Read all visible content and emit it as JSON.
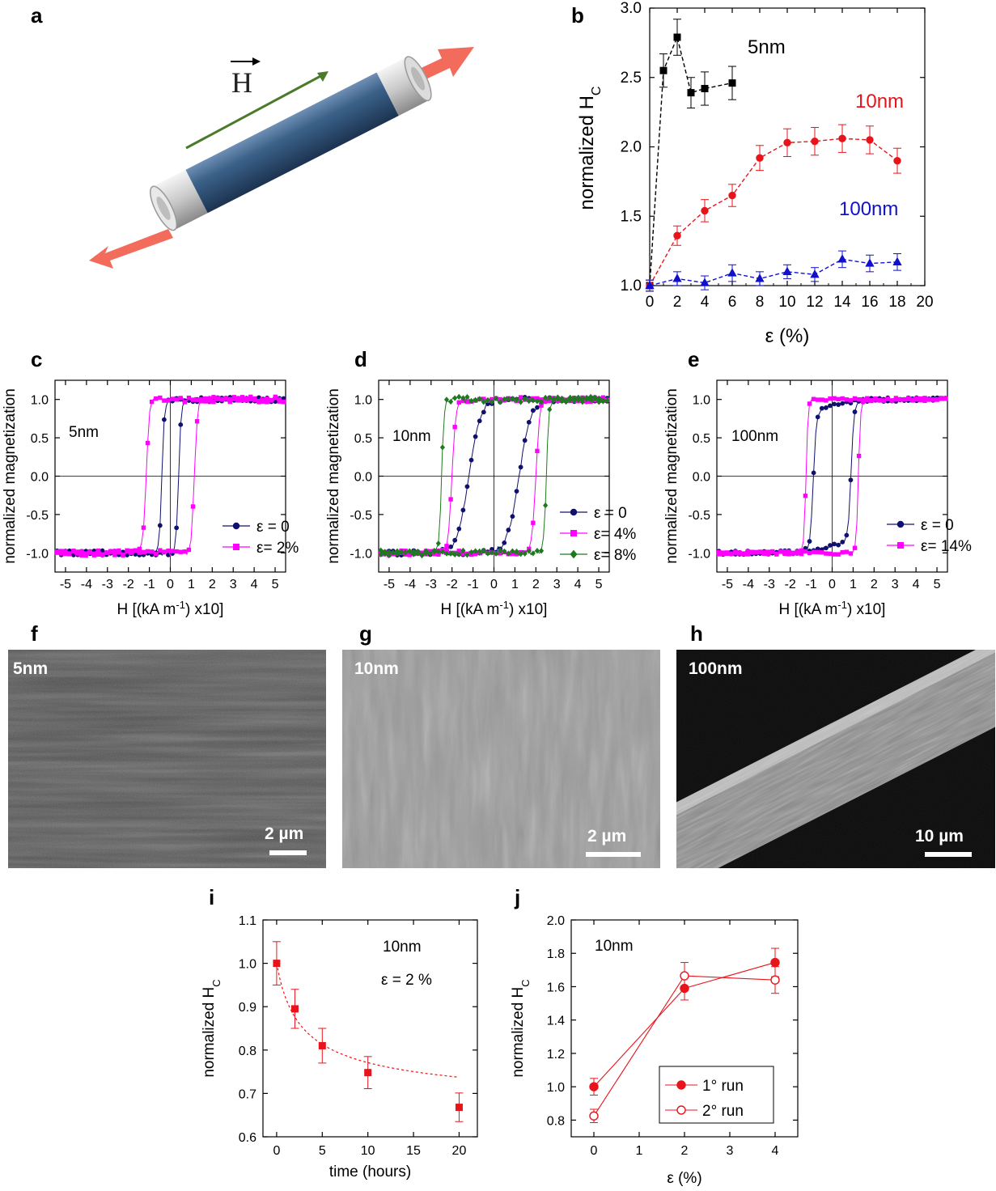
{
  "figure": {
    "panel_labels": [
      "a",
      "b",
      "c",
      "d",
      "e",
      "f",
      "g",
      "h",
      "i",
      "j"
    ],
    "field_symbol": "H",
    "sem": [
      {
        "id": "f",
        "label": "5nm",
        "scale": "2 µm"
      },
      {
        "id": "g",
        "label": "10nm",
        "scale": "2 µm"
      },
      {
        "id": "h",
        "label": "100nm",
        "scale": "10 µm"
      }
    ],
    "colors": {
      "black": "#000000",
      "red": "#e8141b",
      "blue": "#1111cc",
      "navy": "#10106e",
      "magenta": "#ff00ff",
      "green": "#1e7a1e",
      "teal": "#1f8a8a",
      "arrow": "#f26b5b",
      "field": "#4a7a2a",
      "tube": "#2f5377"
    }
  },
  "chart_data": [
    {
      "id": "b",
      "type": "scatter",
      "xlabel": "ε (%)",
      "ylabel": "normalized H",
      "ylabel_sub": "C",
      "xlim": [
        0,
        20
      ],
      "ylim": [
        1.0,
        3.0
      ],
      "xticks": [
        0,
        2,
        4,
        6,
        8,
        10,
        12,
        14,
        16,
        18,
        20
      ],
      "yticks": [
        1.0,
        1.5,
        2.0,
        2.5,
        3.0
      ],
      "series": [
        {
          "name": "5nm",
          "color": "#000000",
          "marker": "square",
          "x": [
            0,
            1,
            2,
            3,
            4,
            6
          ],
          "y": [
            1.0,
            2.55,
            2.79,
            2.39,
            2.42,
            2.46
          ],
          "err": [
            0.04,
            0.12,
            0.13,
            0.11,
            0.12,
            0.12
          ]
        },
        {
          "name": "10nm",
          "color": "#e8141b",
          "marker": "circle",
          "x": [
            0,
            2,
            4,
            6,
            8,
            10,
            12,
            14,
            16,
            18
          ],
          "y": [
            1.0,
            1.36,
            1.54,
            1.65,
            1.92,
            2.03,
            2.04,
            2.06,
            2.05,
            1.9
          ],
          "err": [
            0.04,
            0.07,
            0.08,
            0.08,
            0.09,
            0.1,
            0.1,
            0.1,
            0.1,
            0.09
          ]
        },
        {
          "name": "100nm",
          "color": "#1111cc",
          "marker": "triangle",
          "x": [
            0,
            2,
            4,
            6,
            8,
            10,
            12,
            14,
            16,
            18
          ],
          "y": [
            1.0,
            1.05,
            1.02,
            1.09,
            1.05,
            1.1,
            1.08,
            1.19,
            1.16,
            1.17
          ],
          "err": [
            0.04,
            0.05,
            0.05,
            0.06,
            0.05,
            0.05,
            0.05,
            0.06,
            0.06,
            0.06
          ]
        }
      ]
    },
    {
      "id": "c",
      "type": "line",
      "xlabel": "H [(kA m",
      "xlabel_sup": "-1",
      "xlabel_tail": ") x10]",
      "ylabel": "normalized magnetization",
      "annotation": "5nm",
      "xlim": [
        -5.5,
        5.5
      ],
      "ylim": [
        -1.25,
        1.25
      ],
      "xticks": [
        -5,
        -4,
        -3,
        -2,
        -1,
        0,
        1,
        2,
        3,
        4,
        5
      ],
      "yticks": [
        -1.0,
        -0.5,
        0.0,
        0.5,
        1.0
      ],
      "series": [
        {
          "name": "ε = 0",
          "color": "#10106e",
          "marker": "circle",
          "hc": 0.4,
          "w": 0.12,
          "noise": 0.03
        },
        {
          "name": "ε= 2%",
          "color": "#ff00ff",
          "marker": "square",
          "hc": 1.15,
          "w": 0.15,
          "noise": 0.035
        }
      ]
    },
    {
      "id": "d",
      "type": "line",
      "xlabel": "H [(kA m",
      "xlabel_sup": "-1",
      "xlabel_tail": ") x10]",
      "ylabel": "normalized magnetization",
      "annotation": "10nm",
      "xlim": [
        -5.5,
        5.5
      ],
      "ylim": [
        -1.25,
        1.25
      ],
      "xticks": [
        -5,
        -4,
        -3,
        -2,
        -1,
        0,
        1,
        2,
        3,
        4,
        5
      ],
      "yticks": [
        -1.0,
        -0.5,
        0.0,
        0.5,
        1.0
      ],
      "series": [
        {
          "name": "ε = 0",
          "color": "#10106e",
          "marker": "circle",
          "hc": 1.2,
          "w": 0.55,
          "noise": 0.03
        },
        {
          "name": "ε= 4%",
          "color": "#ff00ff",
          "marker": "square",
          "hc": 2.0,
          "w": 0.18,
          "noise": 0.03
        },
        {
          "name": "ε= 8%",
          "color": "#1e7a1e",
          "marker": "diamond",
          "hc": 2.5,
          "w": 0.12,
          "noise": 0.035
        }
      ]
    },
    {
      "id": "e",
      "type": "line",
      "xlabel": "H [(kA m",
      "xlabel_sup": "-1",
      "xlabel_tail": ") x10]",
      "ylabel": "normalized magnetization",
      "annotation": "100nm",
      "xlim": [
        -5.5,
        5.5
      ],
      "ylim": [
        -1.25,
        1.25
      ],
      "xticks": [
        -5,
        -4,
        -3,
        -2,
        -1,
        0,
        1,
        2,
        3,
        4,
        5
      ],
      "yticks": [
        -1.0,
        -0.5,
        0.0,
        0.5,
        1.0
      ],
      "series": [
        {
          "name": "ε = 0",
          "color": "#10106e",
          "marker": "circle",
          "hc": 0.9,
          "w": 0.14,
          "noise": 0.025,
          "shoulder": true
        },
        {
          "name": "ε= 14%",
          "color": "#ff00ff",
          "marker": "square",
          "hc": 1.25,
          "w": 0.1,
          "noise": 0.02
        }
      ]
    },
    {
      "id": "i",
      "type": "scatter",
      "xlabel": "time (hours)",
      "ylabel": "normalized H",
      "ylabel_sub": "C",
      "annotations": [
        "10nm",
        "ε = 2 %"
      ],
      "xlim": [
        -1.5,
        22
      ],
      "ylim": [
        0.6,
        1.1
      ],
      "xticks": [
        0,
        5,
        10,
        15,
        20
      ],
      "yticks": [
        0.6,
        0.7,
        0.8,
        0.9,
        1.0,
        1.1
      ],
      "series": [
        {
          "name": "",
          "color": "#e8141b",
          "marker": "square",
          "x": [
            0,
            2,
            5,
            10,
            20
          ],
          "y": [
            1.0,
            0.895,
            0.81,
            0.748,
            0.668
          ],
          "err": [
            0.05,
            0.045,
            0.04,
            0.037,
            0.033
          ]
        }
      ]
    },
    {
      "id": "j",
      "type": "line",
      "xlabel": "ε (%)",
      "ylabel": "normalized H",
      "ylabel_sub": "C",
      "annotation": "10nm",
      "xlim": [
        -0.5,
        4.5
      ],
      "ylim": [
        0.7,
        2.0
      ],
      "xticks": [
        0,
        1,
        2,
        3,
        4
      ],
      "yticks": [
        0.8,
        1.0,
        1.2,
        1.4,
        1.6,
        1.8,
        2.0
      ],
      "series": [
        {
          "name": "1° run",
          "color": "#e8141b",
          "marker": "circle",
          "fill": true,
          "x": [
            0,
            2,
            4
          ],
          "y": [
            1.0,
            1.59,
            1.745
          ],
          "err": [
            0.05,
            0.07,
            0.085
          ]
        },
        {
          "name": "2° run",
          "color": "#e8141b",
          "marker": "circle",
          "fill": false,
          "x": [
            0,
            2,
            4
          ],
          "y": [
            0.825,
            1.665,
            1.64
          ],
          "err": [
            0.04,
            0.08,
            0.08
          ]
        }
      ]
    }
  ]
}
